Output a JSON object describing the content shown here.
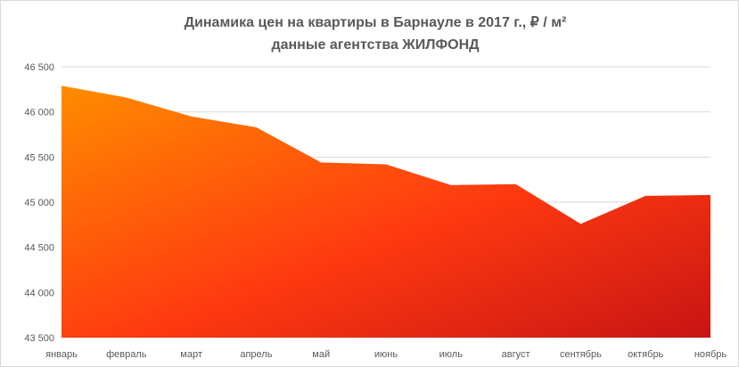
{
  "chart_data": {
    "type": "area",
    "title": "Динамика цен на квартиры в Барнауле в 2017 г., ₽ / м²",
    "subtitle": "данные агентства ЖИЛФОНД",
    "xlabel": "",
    "ylabel": "",
    "categories": [
      "январь",
      "февраль",
      "март",
      "апрель",
      "май",
      "июнь",
      "июль",
      "август",
      "сентябрь",
      "октябрь",
      "ноябрь"
    ],
    "values": [
      46290,
      46160,
      45950,
      45830,
      45440,
      45420,
      45190,
      45200,
      44760,
      45070,
      45080
    ],
    "ylim": [
      43500,
      46500
    ],
    "yticks": [
      43500,
      44000,
      44500,
      45000,
      45500,
      46000,
      46500
    ],
    "ytick_labels": [
      "43 500",
      "44 000",
      "44 500",
      "45 000",
      "45 500",
      "46 000",
      "46 500"
    ],
    "grid": true,
    "legend": "none",
    "colors": {
      "fill_start": "#ff8c00",
      "fill_mid": "#ff3a10",
      "fill_end": "#c81414",
      "grid": "#d9d9d9",
      "text": "#595959"
    }
  }
}
